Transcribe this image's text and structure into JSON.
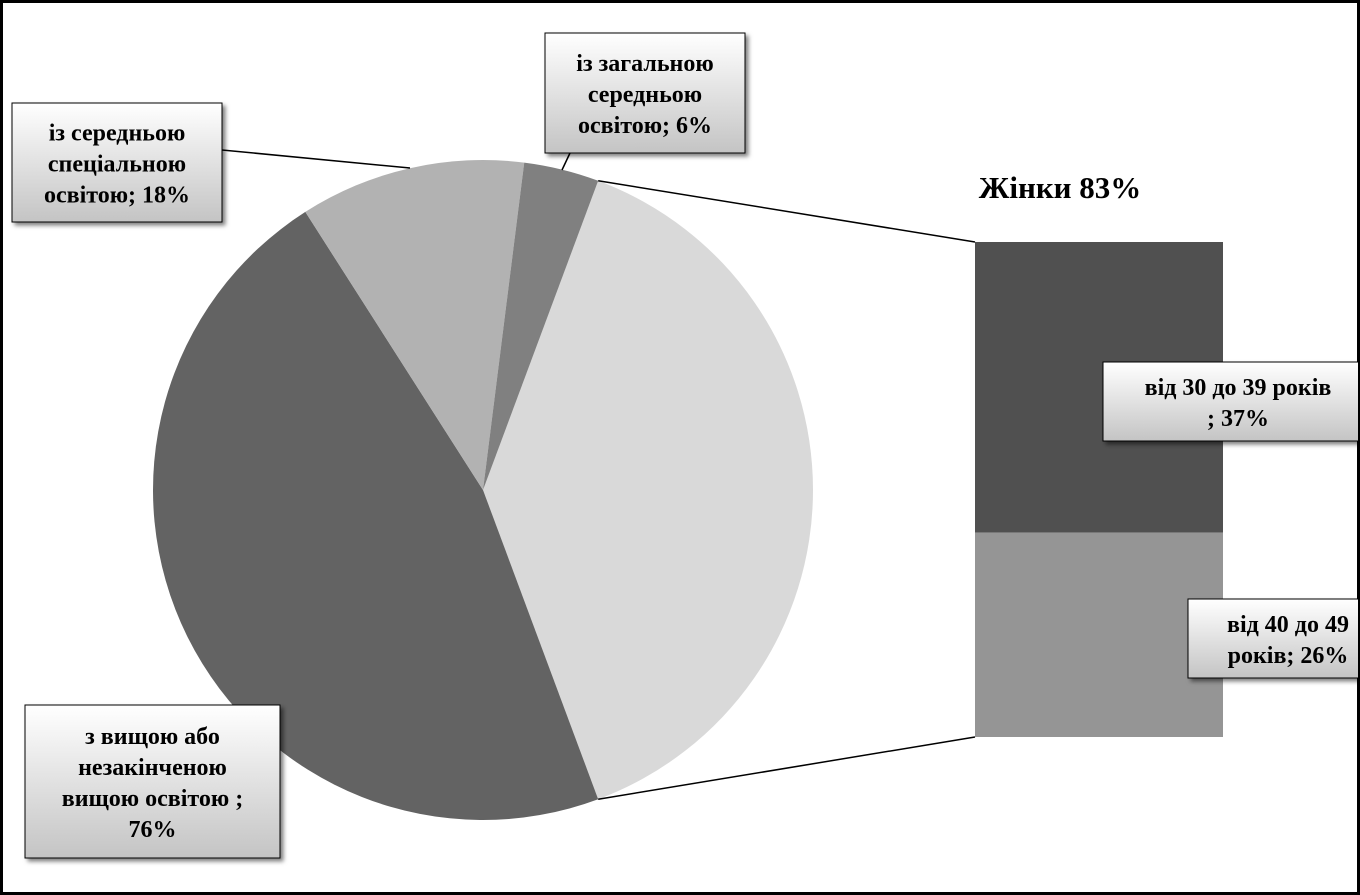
{
  "chart_data": {
    "type": "pie-of-bar",
    "pie": {
      "values": [
        76,
        18,
        6
      ],
      "labels": [
        [
          "з вищою або",
          "незакінченою",
          "вищою освітою ;",
          "76%"
        ],
        [
          "із середньою",
          "спеціальною",
          "освітою; 18%"
        ],
        [
          "із загальною",
          "середньою",
          "освітою; 6%"
        ]
      ],
      "colors": [
        "#636363",
        "#b2b2b2",
        "#808080"
      ],
      "other_color": "#d9d9d9"
    },
    "bar": {
      "title": "Жінки 83%",
      "values": [
        37,
        26
      ],
      "labels": [
        [
          "від 30 до 39 років",
          "; 37%"
        ],
        [
          "від 40 до 49",
          "років; 26%"
        ]
      ],
      "colors": [
        "#505050",
        "#959595"
      ]
    }
  }
}
